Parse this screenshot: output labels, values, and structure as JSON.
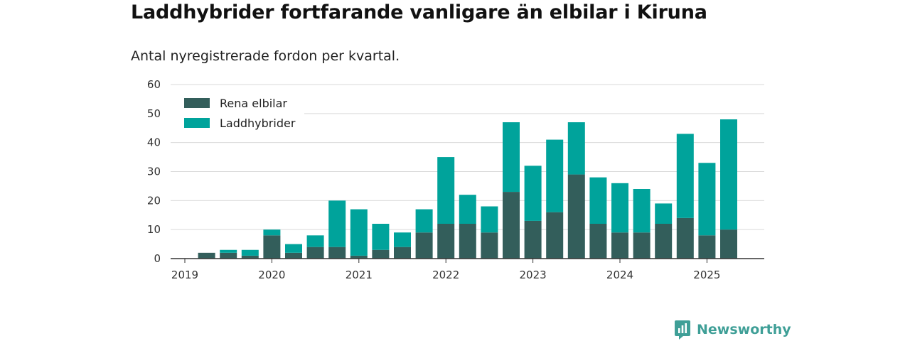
{
  "title": "Laddhybrider fortfarande vanligare än elbilar i Kiruna",
  "subtitle": "Antal nyregistrerade fordon per kvartal.",
  "brand": {
    "name": "Newsworthy",
    "icon": "newsworthy-logo-icon"
  },
  "colors": {
    "elbilar": "#335e5b",
    "laddhybrider": "#00a39b",
    "grid": "#d9d9d9",
    "axis": "#333333"
  },
  "chart_data": {
    "type": "bar",
    "stacked": true,
    "categories": [
      "2019 Q1",
      "2019 Q2",
      "2019 Q3",
      "2019 Q4",
      "2020 Q1",
      "2020 Q2",
      "2020 Q3",
      "2020 Q4",
      "2021 Q1",
      "2021 Q2",
      "2021 Q3",
      "2021 Q4",
      "2022 Q1",
      "2022 Q2",
      "2022 Q3",
      "2022 Q4",
      "2023 Q1",
      "2023 Q2",
      "2023 Q3",
      "2023 Q4",
      "2024 Q1",
      "2024 Q2",
      "2024 Q3",
      "2024 Q4",
      "2025 Q1",
      "2025 Q2"
    ],
    "series": [
      {
        "name": "Rena elbilar",
        "color": "#335e5b",
        "values": [
          0,
          2,
          2,
          1,
          8,
          2,
          4,
          4,
          1,
          3,
          4,
          9,
          12,
          12,
          9,
          23,
          13,
          16,
          29,
          12,
          9,
          9,
          12,
          14,
          8,
          10
        ]
      },
      {
        "name": "Laddhybrider",
        "color": "#00a39b",
        "values": [
          0,
          0,
          1,
          2,
          2,
          3,
          4,
          16,
          16,
          9,
          5,
          8,
          23,
          10,
          9,
          24,
          19,
          25,
          18,
          16,
          17,
          15,
          7,
          29,
          25,
          38
        ]
      }
    ],
    "x_tick_labels": [
      "2019",
      "2020",
      "2021",
      "2022",
      "2023",
      "2024",
      "2025"
    ],
    "y_ticks": [
      0,
      10,
      20,
      30,
      40,
      50,
      60
    ],
    "ylim": [
      0,
      60
    ],
    "grid": true,
    "legend_position": "top-left"
  }
}
